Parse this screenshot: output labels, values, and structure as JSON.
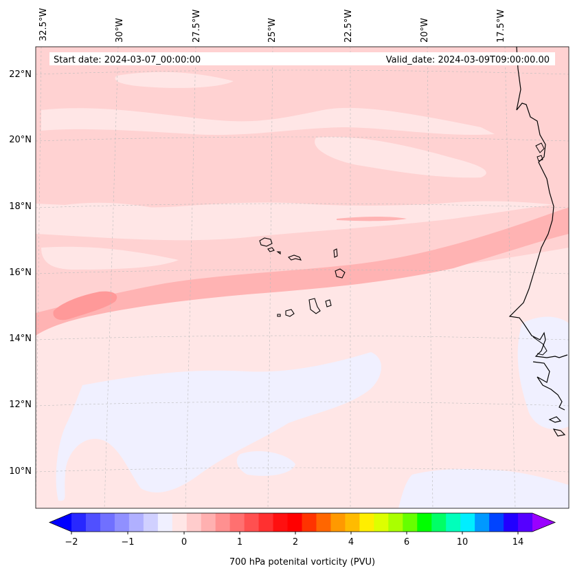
{
  "header": {
    "start_date": "Start date: 2024-03-07_00:00:00",
    "valid_date": "Valid_date: 2024-03-09T09:00:00.00"
  },
  "longitude_labels": [
    "32.5°W",
    "30°W",
    "27.5°W",
    "25°W",
    "22.5°W",
    "20°W",
    "17.5°W"
  ],
  "latitude_labels": [
    "22°N",
    "20°N",
    "18°N",
    "16°N",
    "14°N",
    "12°N",
    "10°N"
  ],
  "colorbar": {
    "label": "700 hPa potenital vorticity (PVU)",
    "tick_labels": [
      "−2",
      "−1",
      "0",
      "1",
      "2",
      "4",
      "6",
      "10",
      "14"
    ],
    "colors": [
      "#0000ff",
      "#2828ff",
      "#5050ff",
      "#7070ff",
      "#9090ff",
      "#b0b0ff",
      "#d0d0ff",
      "#f0f0ff",
      "#ffe6e6",
      "#ffcccc",
      "#ffb0b0",
      "#ff9090",
      "#ff7070",
      "#ff5050",
      "#ff3030",
      "#ff1010",
      "#ff0000",
      "#ff3300",
      "#ff6600",
      "#ff9900",
      "#ffbb00",
      "#ffee00",
      "#ddff00",
      "#aaff00",
      "#66ff00",
      "#00ff00",
      "#00ff66",
      "#00ffbb",
      "#00eeff",
      "#0099ff",
      "#0044ff",
      "#2200ff",
      "#5500ff",
      "#9900ff"
    ]
  },
  "map": {
    "colors": {
      "background": "#ffe6e6",
      "light_band": "#ffd2d2",
      "mid_band": "#ffb3b3",
      "strong_core": "#ff9999",
      "negative": "#f0f0ff",
      "coast": "#000000"
    }
  }
}
